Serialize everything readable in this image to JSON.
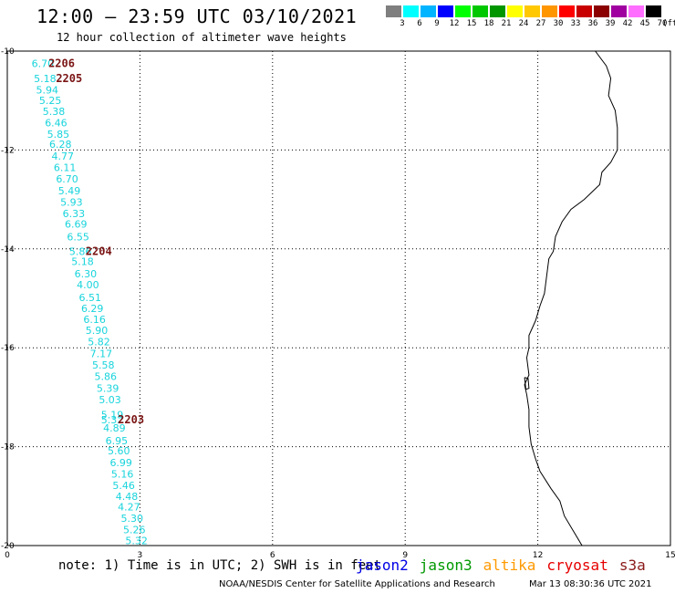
{
  "header": {
    "title": "12:00 – 23:59 UTC 03/10/2021",
    "subtitle": "12 hour collection of altimeter wave heights"
  },
  "legend": {
    "unit": "(ft)",
    "items": [
      {
        "label": "3",
        "color": "#7f7f7f"
      },
      {
        "label": "6",
        "color": "#00ffff"
      },
      {
        "label": "9",
        "color": "#00b4ff"
      },
      {
        "label": "12",
        "color": "#0000ff"
      },
      {
        "label": "15",
        "color": "#00ff00"
      },
      {
        "label": "18",
        "color": "#00c800"
      },
      {
        "label": "21",
        "color": "#009600"
      },
      {
        "label": "24",
        "color": "#ffff00"
      },
      {
        "label": "27",
        "color": "#ffc800"
      },
      {
        "label": "30",
        "color": "#ff9600"
      },
      {
        "label": "33",
        "color": "#ff0000"
      },
      {
        "label": "36",
        "color": "#c80000"
      },
      {
        "label": "39",
        "color": "#8b0000"
      },
      {
        "label": "42",
        "color": "#a000a0"
      },
      {
        "label": "45",
        "color": "#ff6eff"
      },
      {
        "label": "70",
        "color": "#000000"
      }
    ]
  },
  "axes": {
    "x_ticks": [
      "0",
      "3",
      "6",
      "9",
      "12",
      "15"
    ],
    "y_ticks": [
      "-10",
      "-12",
      "-14",
      "-16",
      "-18",
      "-20"
    ],
    "x_range": [
      0,
      15
    ],
    "y_range": [
      -20,
      -10
    ],
    "grid": true
  },
  "passes": [
    {
      "label": "2206",
      "lon": 0.93,
      "lat": -10.25
    },
    {
      "label": "2205",
      "lon": 1.1,
      "lat": -10.55
    },
    {
      "label": "2204",
      "lon": 1.77,
      "lat": -14.05
    },
    {
      "label": "2203",
      "lon": 2.5,
      "lat": -17.45
    }
  ],
  "wave_heights": [
    {
      "value": "6.70",
      "lon": 0.55,
      "lat": -10.25
    },
    {
      "value": "5.18",
      "lon": 0.6,
      "lat": -10.55
    },
    {
      "value": "5.94",
      "lon": 0.65,
      "lat": -10.78
    },
    {
      "value": "5.25",
      "lon": 0.72,
      "lat": -11.0
    },
    {
      "value": "5.38",
      "lon": 0.8,
      "lat": -11.22
    },
    {
      "value": "6.46",
      "lon": 0.85,
      "lat": -11.45
    },
    {
      "value": "5.85",
      "lon": 0.9,
      "lat": -11.68
    },
    {
      "value": "6.28",
      "lon": 0.95,
      "lat": -11.88
    },
    {
      "value": "4.77",
      "lon": 1.0,
      "lat": -12.12
    },
    {
      "value": "6.11",
      "lon": 1.05,
      "lat": -12.35
    },
    {
      "value": "6.70",
      "lon": 1.1,
      "lat": -12.58
    },
    {
      "value": "5.49",
      "lon": 1.15,
      "lat": -12.82
    },
    {
      "value": "5.93",
      "lon": 1.2,
      "lat": -13.05
    },
    {
      "value": "6.33",
      "lon": 1.25,
      "lat": -13.28
    },
    {
      "value": "6.69",
      "lon": 1.3,
      "lat": -13.5
    },
    {
      "value": "6.55",
      "lon": 1.35,
      "lat": -13.75
    },
    {
      "value": "5.86",
      "lon": 1.4,
      "lat": -14.05
    },
    {
      "value": "5.18",
      "lon": 1.45,
      "lat": -14.25
    },
    {
      "value": "6.30",
      "lon": 1.52,
      "lat": -14.5
    },
    {
      "value": "4.00",
      "lon": 1.57,
      "lat": -14.72
    },
    {
      "value": "6.51",
      "lon": 1.62,
      "lat": -14.98
    },
    {
      "value": "6.29",
      "lon": 1.67,
      "lat": -15.2
    },
    {
      "value": "6.16",
      "lon": 1.72,
      "lat": -15.42
    },
    {
      "value": "5.90",
      "lon": 1.77,
      "lat": -15.65
    },
    {
      "value": "5.82",
      "lon": 1.82,
      "lat": -15.88
    },
    {
      "value": "7.17",
      "lon": 1.87,
      "lat": -16.12
    },
    {
      "value": "5.58",
      "lon": 1.92,
      "lat": -16.35
    },
    {
      "value": "5.86",
      "lon": 1.97,
      "lat": -16.58
    },
    {
      "value": "5.39",
      "lon": 2.02,
      "lat": -16.82
    },
    {
      "value": "5.03",
      "lon": 2.07,
      "lat": -17.05
    },
    {
      "value": "5.19",
      "lon": 2.12,
      "lat": -17.35
    },
    {
      "value": "5.32",
      "lon": 2.12,
      "lat": -17.45
    },
    {
      "value": "4.89",
      "lon": 2.17,
      "lat": -17.62
    },
    {
      "value": "6.95",
      "lon": 2.22,
      "lat": -17.88
    },
    {
      "value": "5.60",
      "lon": 2.27,
      "lat": -18.08
    },
    {
      "value": "6.99",
      "lon": 2.32,
      "lat": -18.32
    },
    {
      "value": "5.16",
      "lon": 2.35,
      "lat": -18.55
    },
    {
      "value": "5.46",
      "lon": 2.38,
      "lat": -18.78
    },
    {
      "value": "4.48",
      "lon": 2.45,
      "lat": -19.0
    },
    {
      "value": "4.27",
      "lon": 2.5,
      "lat": -19.22
    },
    {
      "value": "5.30",
      "lon": 2.57,
      "lat": -19.45
    },
    {
      "value": "5.26",
      "lon": 2.62,
      "lat": -19.68
    },
    {
      "value": "5.32",
      "lon": 2.67,
      "lat": -19.9
    }
  ],
  "coastline": [
    [
      13.3,
      -10.0
    ],
    [
      13.55,
      -10.3
    ],
    [
      13.65,
      -10.55
    ],
    [
      13.6,
      -10.9
    ],
    [
      13.75,
      -11.2
    ],
    [
      13.8,
      -11.55
    ],
    [
      13.8,
      -12.0
    ],
    [
      13.65,
      -12.25
    ],
    [
      13.45,
      -12.45
    ],
    [
      13.4,
      -12.7
    ],
    [
      13.05,
      -13.0
    ],
    [
      12.75,
      -13.2
    ],
    [
      12.55,
      -13.45
    ],
    [
      12.4,
      -13.75
    ],
    [
      12.35,
      -14.05
    ],
    [
      12.25,
      -14.2
    ],
    [
      12.2,
      -14.55
    ],
    [
      12.15,
      -14.9
    ],
    [
      12.05,
      -15.15
    ],
    [
      11.95,
      -15.45
    ],
    [
      11.8,
      -15.75
    ],
    [
      11.8,
      -16.0
    ],
    [
      11.75,
      -16.2
    ],
    [
      11.8,
      -16.55
    ],
    [
      11.7,
      -16.75
    ],
    [
      11.75,
      -16.95
    ],
    [
      11.8,
      -17.25
    ],
    [
      11.8,
      -17.6
    ],
    [
      11.85,
      -17.95
    ],
    [
      11.95,
      -18.25
    ],
    [
      12.05,
      -18.5
    ],
    [
      12.3,
      -18.85
    ],
    [
      12.5,
      -19.1
    ],
    [
      12.6,
      -19.4
    ],
    [
      12.8,
      -19.7
    ],
    [
      13.0,
      -20.0
    ]
  ],
  "islet": [
    [
      11.7,
      -16.6
    ],
    [
      11.78,
      -16.62
    ],
    [
      11.8,
      -16.82
    ],
    [
      11.73,
      -16.84
    ],
    [
      11.7,
      -16.6
    ]
  ],
  "note": "note: 1) Time is in UTC; 2) SWH is in feet",
  "satellites": [
    {
      "name": "jason2",
      "color": "#0000e6"
    },
    {
      "name": "jason3",
      "color": "#009900"
    },
    {
      "name": "altika",
      "color": "#ff9900"
    },
    {
      "name": "cryosat",
      "color": "#e60000"
    },
    {
      "name": "s3a",
      "color": "#8b1a1a"
    }
  ],
  "footer": "NOAA/NESDIS Center for Satellite Applications and Research",
  "timestamp": "Mar 13 08:30:36 UTC 2021"
}
